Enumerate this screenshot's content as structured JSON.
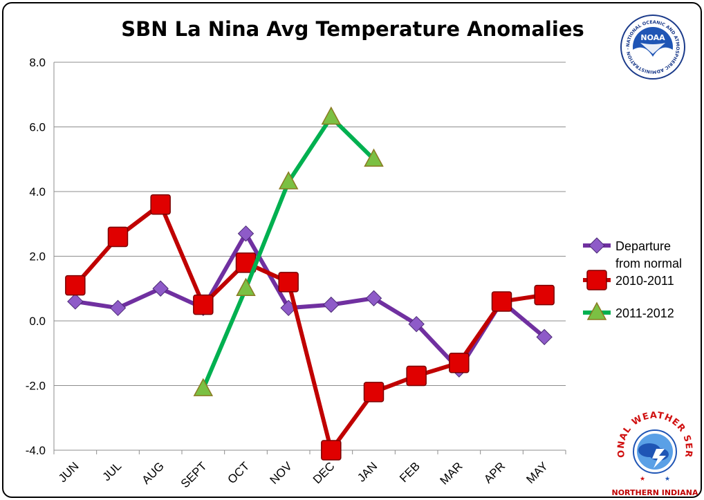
{
  "chart_data": {
    "type": "line",
    "title": "SBN La Nina Avg Temperature Anomalies",
    "categories": [
      "JUN",
      "JUL",
      "AUG",
      "SEPT",
      "OCT",
      "NOV",
      "DEC",
      "JAN",
      "FEB",
      "MAR",
      "APR",
      "MAY"
    ],
    "ylim": [
      -4.0,
      8.0
    ],
    "yticks": [
      "8.0",
      "6.0",
      "4.0",
      "2.0",
      "0.0",
      "-2.0",
      "-4.0"
    ],
    "ytick_values": [
      8,
      6,
      4,
      2,
      0,
      -2,
      -4
    ],
    "grid": true,
    "legend_position": "right",
    "series": [
      {
        "name": "Departure from normal",
        "legend_lines": [
          "Departure",
          "from normal"
        ],
        "color": "#7030A0",
        "marker": "diamond",
        "marker_color": "#8E5BC8",
        "values": [
          0.6,
          0.4,
          1.0,
          0.4,
          2.7,
          0.4,
          0.5,
          0.7,
          -0.1,
          -1.5,
          0.6,
          -0.5
        ]
      },
      {
        "name": "2010-2011",
        "legend_lines": [
          "2010-2011"
        ],
        "color": "#C00000",
        "marker": "square",
        "marker_color": "#E00000",
        "values": [
          1.1,
          2.6,
          3.6,
          0.5,
          1.8,
          1.2,
          -4.0,
          -2.2,
          -1.7,
          -1.3,
          0.6,
          0.8
        ]
      },
      {
        "name": "2011-2012",
        "legend_lines": [
          "2011-2012"
        ],
        "color": "#00B050",
        "marker": "triangle",
        "marker_color": "#7BC043",
        "values": [
          null,
          null,
          null,
          -2.1,
          1.0,
          4.3,
          6.3,
          5.0,
          null,
          null,
          null,
          null
        ]
      }
    ]
  },
  "logos": {
    "noaa": {
      "name": "NOAA",
      "ring_text": "NATIONAL OCEANIC AND ATMOSPHERIC ADMINISTRATION · U.S. DEPARTMENT OF COMMERCE"
    },
    "nws": {
      "name": "NATIONAL WEATHER SERVICE",
      "subtitle": "NORTHERN INDIANA"
    }
  }
}
